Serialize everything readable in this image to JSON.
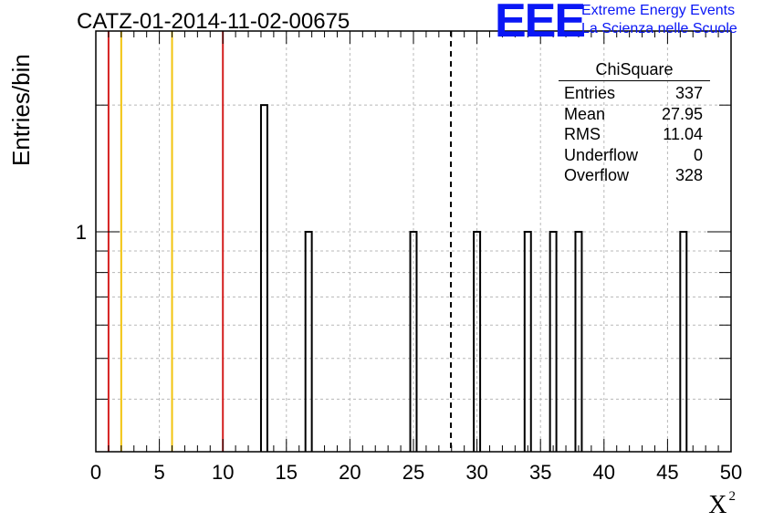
{
  "title": "CATZ-01-2014-11-02-00675",
  "logo": {
    "mark": "EEE",
    "line1": "Extreme Energy Events",
    "line2": "La Scienza nelle Scuole",
    "color": "#0a17f5"
  },
  "stats_box": {
    "title": "ChiSquare",
    "rows": [
      {
        "label": "Entries",
        "value": "337"
      },
      {
        "label": "Mean",
        "value": "27.95"
      },
      {
        "label": "RMS",
        "value": "11.04"
      },
      {
        "label": "Underflow",
        "value": "0"
      },
      {
        "label": "Overflow",
        "value": "328"
      }
    ]
  },
  "chart_data": {
    "type": "bar",
    "title": "CATZ-01-2014-11-02-00675",
    "xlabel": "X",
    "xlabel_superscript": "2",
    "ylabel": "Entries/bin",
    "xlim": [
      0,
      50
    ],
    "ylim": [
      0.3,
      3.0
    ],
    "yscale": "log",
    "grid": true,
    "x_ticks": [
      0,
      5,
      10,
      15,
      20,
      25,
      30,
      35,
      40,
      45,
      50
    ],
    "y_tick_labels": [
      {
        "value": 1,
        "label": "1"
      }
    ],
    "bin_width": 0.5,
    "bins": [
      {
        "x": 13.0,
        "count": 2
      },
      {
        "x": 16.5,
        "count": 1
      },
      {
        "x": 24.75,
        "count": 1
      },
      {
        "x": 29.75,
        "count": 1
      },
      {
        "x": 33.75,
        "count": 1
      },
      {
        "x": 35.75,
        "count": 1
      },
      {
        "x": 37.75,
        "count": 1
      },
      {
        "x": 46.0,
        "count": 1
      }
    ],
    "vertical_lines": [
      {
        "x": 1,
        "color": "#d42020",
        "style": "solid"
      },
      {
        "x": 2,
        "color": "#f2c40f",
        "style": "solid"
      },
      {
        "x": 6,
        "color": "#f2c40f",
        "style": "solid"
      },
      {
        "x": 10,
        "color": "#d42020",
        "style": "solid"
      },
      {
        "x": 27.95,
        "color": "#000000",
        "style": "dashed"
      }
    ]
  }
}
